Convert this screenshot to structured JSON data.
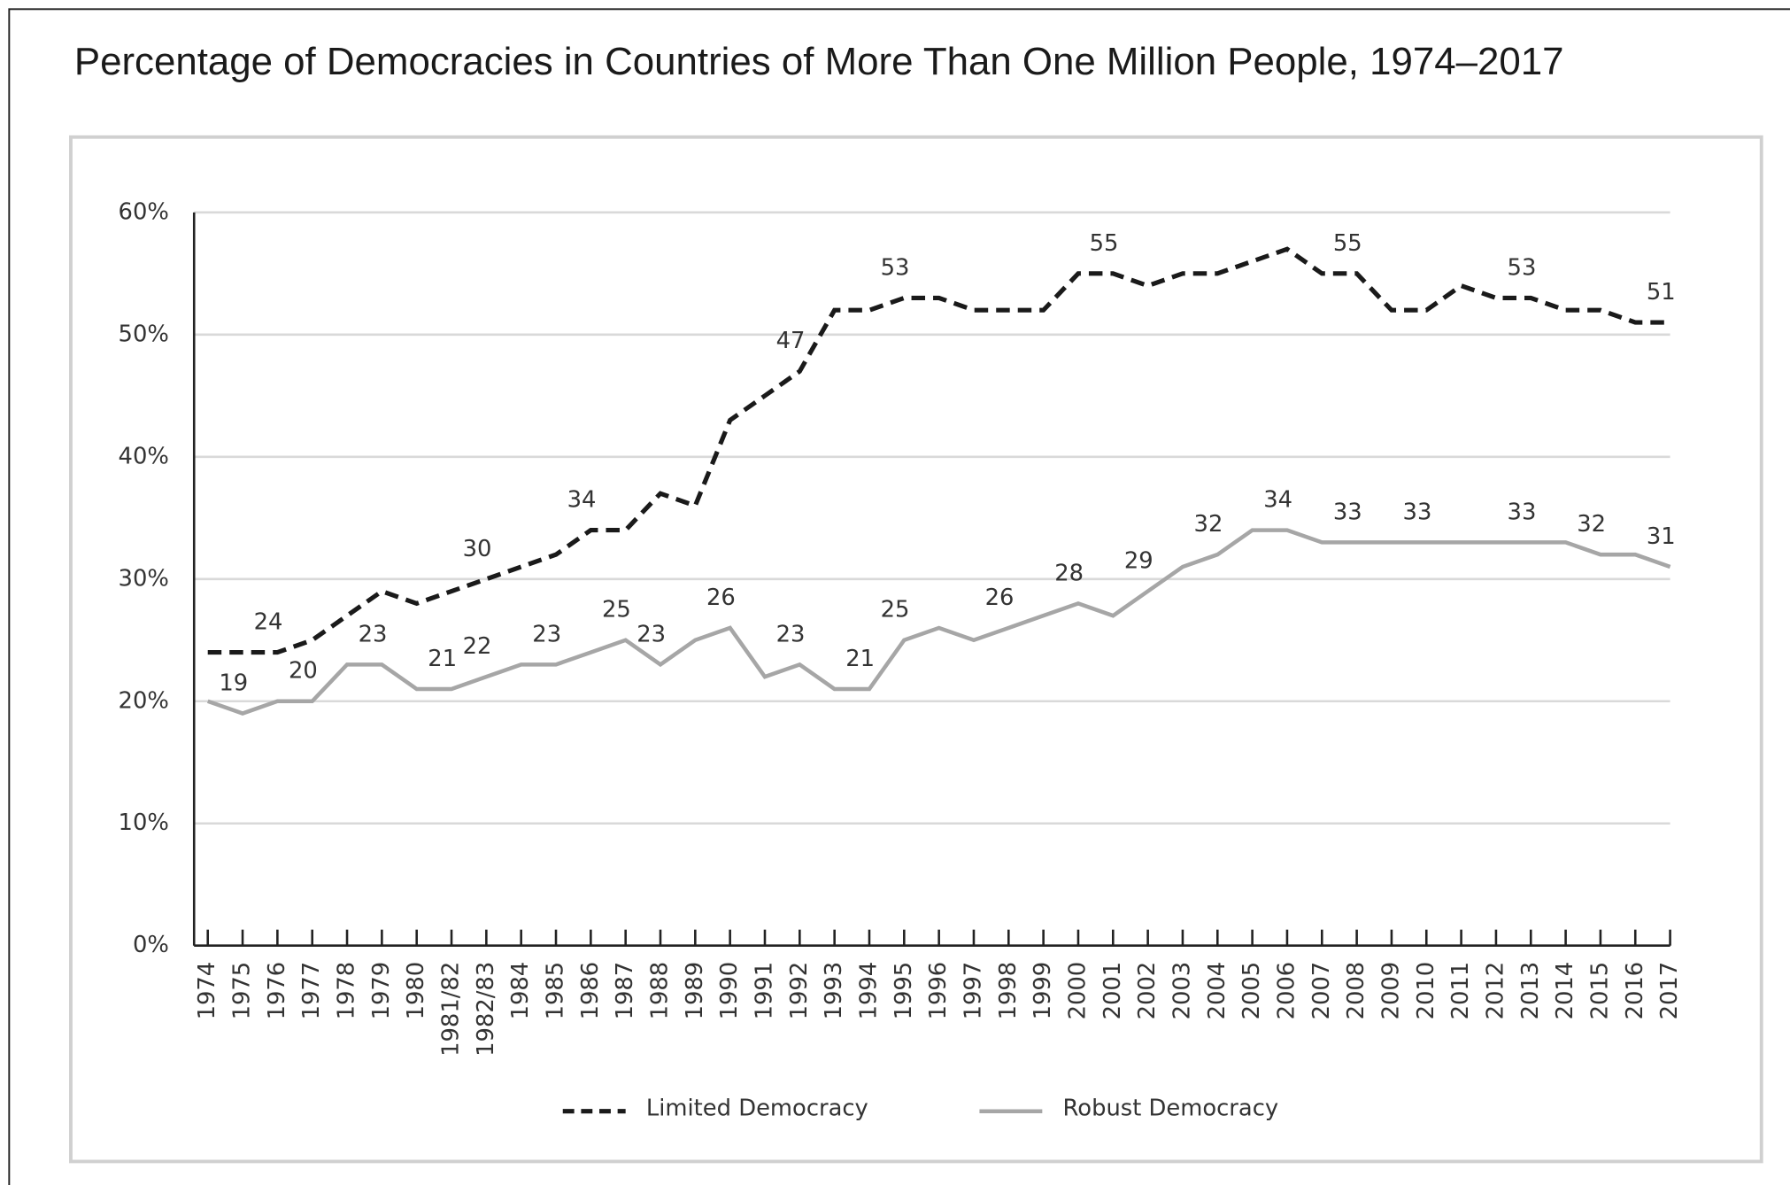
{
  "chart_data": {
    "type": "line",
    "title": "Percentage of Democracies in Countries of More Than One Million People, 1974–2017",
    "categories": [
      "1974",
      "1975",
      "1976",
      "1977",
      "1978",
      "1979",
      "1980",
      "1981/82",
      "1982/83",
      "1984",
      "1985",
      "1986",
      "1987",
      "1988",
      "1989",
      "1990",
      "1991",
      "1992",
      "1993",
      "1994",
      "1995",
      "1996",
      "1997",
      "1998",
      "1999",
      "2000",
      "2001",
      "2002",
      "2003",
      "2004",
      "2005",
      "2006",
      "2007",
      "2008",
      "2009",
      "2010",
      "2011",
      "2012",
      "2013",
      "2014",
      "2015",
      "2016",
      "2017"
    ],
    "series": [
      {
        "name": "Limited Democracy",
        "color": "#1a1a1a",
        "line_style": "dashed",
        "values": [
          24,
          24,
          24,
          25,
          27,
          29,
          28,
          29,
          30,
          31,
          32,
          34,
          34,
          37,
          36,
          43,
          45,
          47,
          52,
          52,
          53,
          53,
          52,
          52,
          52,
          55,
          55,
          54,
          55,
          55,
          56,
          57,
          55,
          55,
          52,
          52,
          54,
          53,
          53,
          52,
          52,
          51,
          51
        ],
        "value_labels": [
          null,
          null,
          24,
          null,
          null,
          null,
          null,
          null,
          30,
          null,
          null,
          34,
          null,
          null,
          null,
          null,
          null,
          47,
          null,
          null,
          53,
          null,
          null,
          null,
          null,
          null,
          55,
          null,
          null,
          null,
          null,
          null,
          null,
          55,
          null,
          null,
          null,
          null,
          53,
          null,
          null,
          null,
          51
        ]
      },
      {
        "name": "Robust Democracy",
        "color": "#a6a6a6",
        "line_style": "solid",
        "values": [
          20,
          19,
          20,
          20,
          23,
          23,
          21,
          21,
          22,
          23,
          23,
          24,
          25,
          23,
          25,
          26,
          22,
          23,
          21,
          21,
          25,
          26,
          25,
          26,
          27,
          28,
          27,
          29,
          31,
          32,
          34,
          34,
          33,
          33,
          33,
          33,
          33,
          33,
          33,
          33,
          32,
          32,
          31
        ],
        "value_labels": [
          null,
          19,
          null,
          20,
          null,
          23,
          null,
          21,
          22,
          null,
          23,
          null,
          25,
          23,
          null,
          26,
          null,
          23,
          null,
          21,
          25,
          null,
          null,
          26,
          null,
          28,
          null,
          29,
          null,
          32,
          null,
          34,
          null,
          33,
          null,
          33,
          null,
          null,
          33,
          null,
          32,
          null,
          31
        ]
      }
    ],
    "ylim": [
      0,
      60
    ],
    "yticks": [
      {
        "value": 0,
        "label": "0%"
      },
      {
        "value": 10,
        "label": "10%"
      },
      {
        "value": 20,
        "label": "20%"
      },
      {
        "value": 30,
        "label": "30%"
      },
      {
        "value": 40,
        "label": "40%"
      },
      {
        "value": 50,
        "label": "50%"
      },
      {
        "value": 60,
        "label": "60%"
      }
    ],
    "grid": true,
    "legend": "bottom"
  }
}
